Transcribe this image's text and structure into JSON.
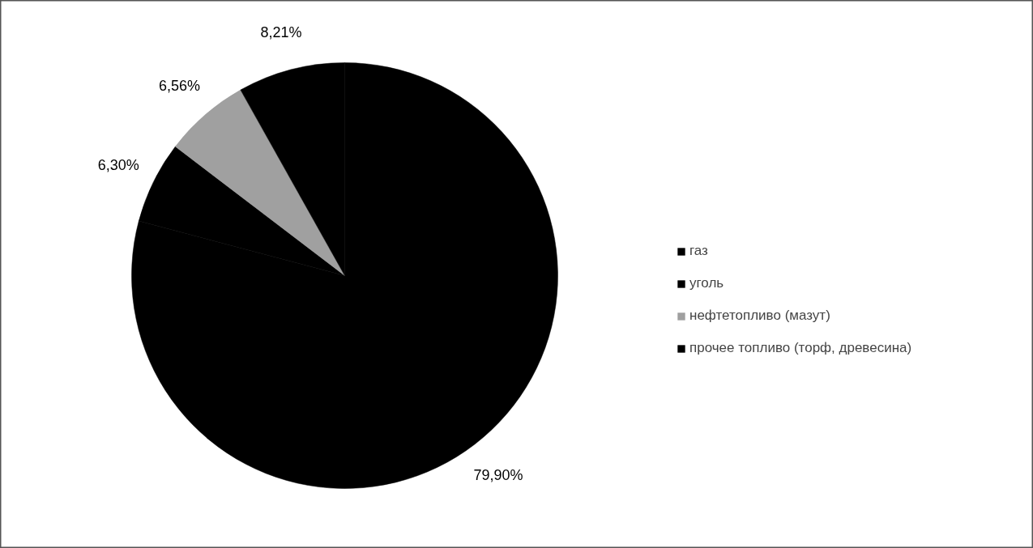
{
  "chart_data": {
    "type": "pie",
    "categories": [
      "газ",
      "уголь",
      "нефтетопливо (мазут)",
      "прочее топливо (торф, древесина)"
    ],
    "values": [
      79.9,
      6.3,
      6.56,
      8.21
    ],
    "colors": [
      "#000000",
      "#000000",
      "#a0a0a0",
      "#000000"
    ],
    "value_labels": [
      "79,90%",
      "6,30%",
      "6,56%",
      "8,21%"
    ],
    "legend": "right"
  }
}
